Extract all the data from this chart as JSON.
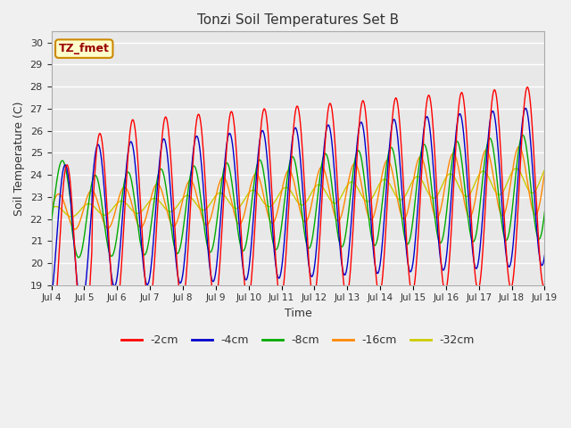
{
  "title": "Tonzi Soil Temperatures Set B",
  "xlabel": "Time",
  "ylabel": "Soil Temperature (C)",
  "ylim": [
    19.0,
    30.5
  ],
  "yticks": [
    19.0,
    20.0,
    21.0,
    22.0,
    23.0,
    24.0,
    25.0,
    26.0,
    27.0,
    28.0,
    29.0,
    30.0
  ],
  "fig_bg_color": "#f0f0f0",
  "plot_bg_color": "#e8e8e8",
  "annotation_text": "TZ_fmet",
  "annotation_bg": "#ffffcc",
  "annotation_border": "#cc8800",
  "series_colors": [
    "#ff0000",
    "#0000cc",
    "#00aa00",
    "#ff8800",
    "#cccc00"
  ],
  "series_labels": [
    "-2cm",
    "-4cm",
    "-8cm",
    "-16cm",
    "-32cm"
  ],
  "n_days": 15,
  "start_day": 4
}
